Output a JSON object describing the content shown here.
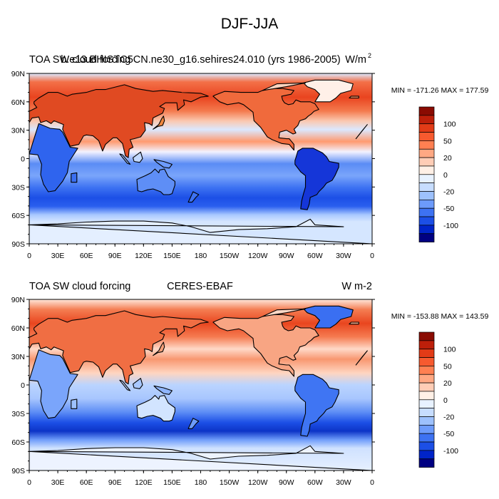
{
  "figure": {
    "title": "DJF-JJA"
  },
  "colorbar": {
    "colors": [
      "#000082",
      "#0024c9",
      "#1c4fe6",
      "#3d72f2",
      "#6d9bfb",
      "#9dc1fd",
      "#c7ddff",
      "#e8f2ff",
      "#fff0e6",
      "#ffcdb6",
      "#ffa883",
      "#ff8052",
      "#f75a2f",
      "#e23b17",
      "#bd1f0a",
      "#8a0b02"
    ],
    "labels": [
      "100",
      "50",
      "20",
      "0",
      "-20",
      "-50",
      "-100"
    ]
  },
  "axes": {
    "lat_labels": [
      "90N",
      "60N",
      "30N",
      "0",
      "30S",
      "60S",
      "90S"
    ],
    "lon_labels": [
      "0",
      "30E",
      "60E",
      "90E",
      "120E",
      "150E",
      "180",
      "150W",
      "120W",
      "90W",
      "60W",
      "30W",
      "0"
    ]
  },
  "panels": [
    {
      "left_title": "TOA SW cloud forcing",
      "center_title": "b.e13.BHISTC5CN.ne30_g16.sehires24.010 (yrs 1986-2005)",
      "right_title": "W/m",
      "right_title_sup": "2",
      "stats": "MIN = -171.26 MAX = 177.59"
    },
    {
      "left_title": "TOA SW cloud forcing",
      "center_title": "CERES-EBAF",
      "right_title": "W m-2",
      "right_title_sup": "",
      "stats": "MIN = -153.88 MAX = 143.59"
    }
  ]
}
